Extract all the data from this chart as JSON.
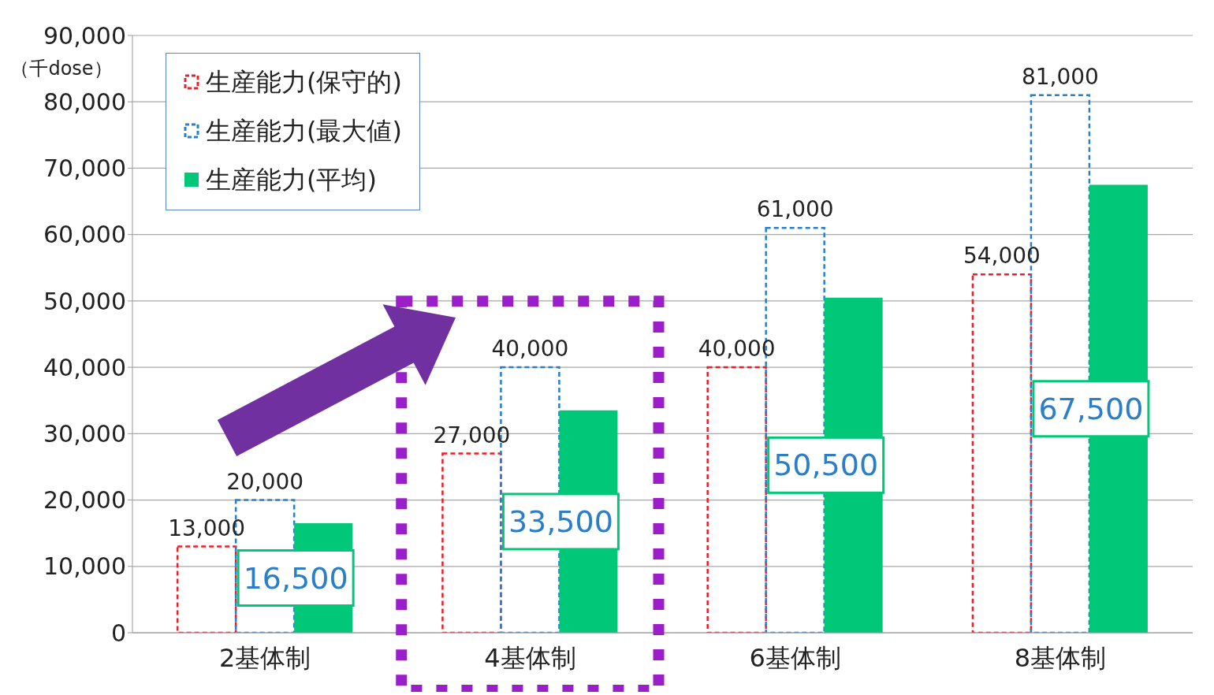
{
  "chart_data": {
    "type": "bar",
    "ylabel": "（千dose）",
    "categories": [
      "2基体制",
      "4基体制",
      "6基体制",
      "8基体制"
    ],
    "series": [
      {
        "name": "生産能力(保守的)",
        "color": "#e8202a",
        "line_style": "dashed",
        "values": [
          13000,
          27000,
          40000,
          54000
        ],
        "value_labels": [
          "13,000",
          "27,000",
          "40,000",
          "54,000"
        ]
      },
      {
        "name": "生産能力(最大値)",
        "color": "#2a7fc8",
        "line_style": "dashed",
        "values": [
          20000,
          40000,
          61000,
          81000
        ],
        "value_labels": [
          "20,000",
          "40,000",
          "61,000",
          "81,000"
        ]
      },
      {
        "name": "生産能力(平均)",
        "color": "#00c878",
        "values": [
          16500,
          33500,
          50500,
          67500
        ],
        "value_labels": [
          "16,500",
          "33,500",
          "50,500",
          "67,500"
        ]
      }
    ],
    "ylim": [
      0,
      90000
    ],
    "yticks": [
      {
        "value": 0,
        "label": "0"
      },
      {
        "value": 10000,
        "label": "10,000"
      },
      {
        "value": 20000,
        "label": "20,000"
      },
      {
        "value": 30000,
        "label": "30,000"
      },
      {
        "value": 40000,
        "label": "40,000"
      },
      {
        "value": 50000,
        "label": "50,000"
      },
      {
        "value": 60000,
        "label": "60,000"
      },
      {
        "value": 70000,
        "label": "70,000"
      },
      {
        "value": 80000,
        "label": "80,000"
      },
      {
        "value": 90000,
        "label": "90,000"
      }
    ],
    "grid": "y",
    "legend": "top left"
  }
}
